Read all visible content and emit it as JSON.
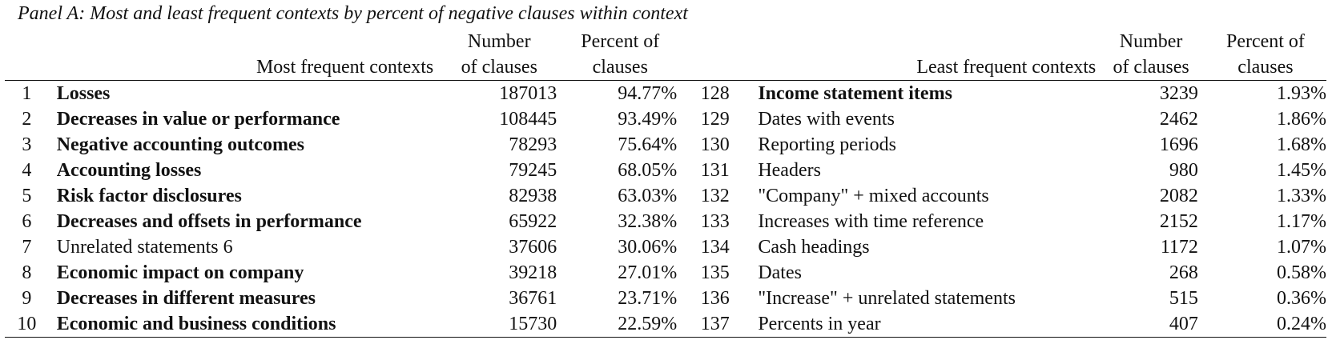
{
  "panel_title": "Panel A: Most and least frequent contexts by percent of negative clauses within context",
  "headers": {
    "most_frequent": "Most frequent contexts",
    "least_frequent": "Least frequent contexts",
    "number_line1": "Number",
    "number_line2": "of clauses",
    "percent_line1": "Percent of",
    "percent_line2": "clauses"
  },
  "rows": [
    {
      "rank1": "1",
      "ctx1": "Losses",
      "bold1": true,
      "num1": "187013",
      "pct1": "94.77%",
      "rank2": "128",
      "ctx2": "Income statement items",
      "bold2": true,
      "num2": "3239",
      "pct2": "1.93%"
    },
    {
      "rank1": "2",
      "ctx1": "Decreases in value or performance",
      "bold1": true,
      "num1": "108445",
      "pct1": "93.49%",
      "rank2": "129",
      "ctx2": "Dates with events",
      "bold2": false,
      "num2": "2462",
      "pct2": "1.86%"
    },
    {
      "rank1": "3",
      "ctx1": "Negative accounting outcomes",
      "bold1": true,
      "num1": "78293",
      "pct1": "75.64%",
      "rank2": "130",
      "ctx2": "Reporting periods",
      "bold2": false,
      "num2": "1696",
      "pct2": "1.68%"
    },
    {
      "rank1": "4",
      "ctx1": "Accounting losses",
      "bold1": true,
      "num1": "79245",
      "pct1": "68.05%",
      "rank2": "131",
      "ctx2": "Headers",
      "bold2": false,
      "num2": "980",
      "pct2": "1.45%"
    },
    {
      "rank1": "5",
      "ctx1": "Risk factor disclosures",
      "bold1": true,
      "num1": "82938",
      "pct1": "63.03%",
      "rank2": "132",
      "ctx2": "\"Company\" + mixed accounts",
      "bold2": false,
      "num2": "2082",
      "pct2": "1.33%"
    },
    {
      "rank1": "6",
      "ctx1": "Decreases and offsets in performance",
      "bold1": true,
      "num1": "65922",
      "pct1": "32.38%",
      "rank2": "133",
      "ctx2": "Increases with time reference",
      "bold2": false,
      "num2": "2152",
      "pct2": "1.17%"
    },
    {
      "rank1": "7",
      "ctx1": "Unrelated statements 6",
      "bold1": false,
      "num1": "37606",
      "pct1": "30.06%",
      "rank2": "134",
      "ctx2": "Cash headings",
      "bold2": false,
      "num2": "1172",
      "pct2": "1.07%"
    },
    {
      "rank1": "8",
      "ctx1": "Economic impact on company",
      "bold1": true,
      "num1": "39218",
      "pct1": "27.01%",
      "rank2": "135",
      "ctx2": "Dates",
      "bold2": false,
      "num2": "268",
      "pct2": "0.58%"
    },
    {
      "rank1": "9",
      "ctx1": "Decreases in different measures",
      "bold1": true,
      "num1": "36761",
      "pct1": "23.71%",
      "rank2": "136",
      "ctx2": "\"Increase\" + unrelated statements",
      "bold2": false,
      "num2": "515",
      "pct2": "0.36%"
    },
    {
      "rank1": "10",
      "ctx1": "Economic and business conditions",
      "bold1": true,
      "num1": "15730",
      "pct1": "22.59%",
      "rank2": "137",
      "ctx2": "Percents in year",
      "bold2": false,
      "num2": "407",
      "pct2": "0.24%"
    }
  ]
}
